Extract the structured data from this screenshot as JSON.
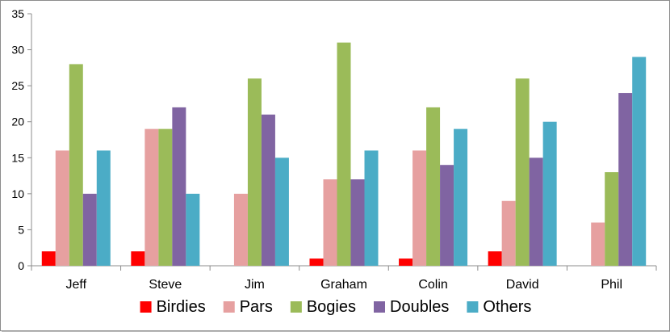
{
  "chart_data": {
    "type": "bar",
    "title": "",
    "xlabel": "",
    "ylabel": "",
    "ylim": [
      0,
      35
    ],
    "yticks": [
      0,
      5,
      10,
      15,
      20,
      25,
      30,
      35
    ],
    "grid": false,
    "legend_position": "bottom",
    "categories": [
      "Jeff",
      "Steve",
      "Jim",
      "Graham",
      "Colin",
      "David",
      "Phil"
    ],
    "series": [
      {
        "name": "Birdies",
        "color": "#ff0000",
        "values": [
          2,
          2,
          0,
          1,
          1,
          2,
          0
        ]
      },
      {
        "name": "Pars",
        "color": "#e6a0a0",
        "values": [
          16,
          19,
          10,
          12,
          16,
          9,
          6
        ]
      },
      {
        "name": "Bogies",
        "color": "#9bbb59",
        "values": [
          28,
          19,
          26,
          31,
          22,
          26,
          13
        ]
      },
      {
        "name": "Doubles",
        "color": "#8064a2",
        "values": [
          10,
          22,
          21,
          12,
          14,
          15,
          24
        ]
      },
      {
        "name": "Others",
        "color": "#4bacc6",
        "values": [
          16,
          10,
          15,
          16,
          19,
          20,
          29
        ]
      }
    ]
  }
}
